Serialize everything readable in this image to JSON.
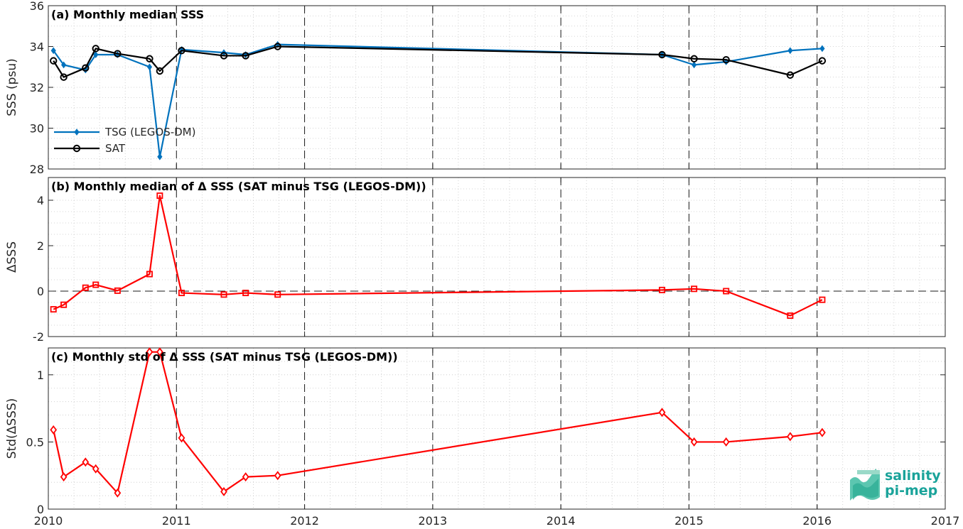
{
  "chart_data": [
    {
      "type": "line",
      "title": "(a) Monthly median SSS",
      "ylabel": "SSS (psu)",
      "xlim": [
        2010,
        2017
      ],
      "ylim": [
        28,
        36
      ],
      "yticks": [
        28,
        30,
        32,
        34,
        36
      ],
      "grid": true,
      "legend_location": "lower-left",
      "series": [
        {
          "name": "TSG (LEGOS-DM)",
          "color": "#0072BD",
          "marker": "diamond",
          "x": [
            2010.04,
            2010.12,
            2010.29,
            2010.37,
            2010.54,
            2010.79,
            2010.87,
            2011.04,
            2011.37,
            2011.54,
            2011.79,
            2014.79,
            2015.04,
            2015.29,
            2015.79,
            2016.04
          ],
          "y": [
            33.8,
            33.1,
            32.85,
            33.6,
            33.6,
            33.0,
            28.6,
            33.85,
            33.7,
            33.6,
            34.1,
            33.6,
            33.1,
            33.25,
            33.8,
            33.9
          ]
        },
        {
          "name": "SAT",
          "color": "#000000",
          "marker": "circle",
          "x": [
            2010.04,
            2010.12,
            2010.29,
            2010.37,
            2010.54,
            2010.79,
            2010.87,
            2011.04,
            2011.37,
            2011.54,
            2011.79,
            2014.79,
            2015.04,
            2015.29,
            2015.79,
            2016.04
          ],
          "y": [
            33.3,
            32.5,
            32.95,
            33.9,
            33.65,
            33.4,
            32.8,
            33.8,
            33.55,
            33.55,
            34.0,
            33.6,
            33.4,
            33.35,
            32.6,
            33.3
          ]
        }
      ]
    },
    {
      "type": "line",
      "title": "(b) Monthly median of Δ SSS (SAT minus TSG (LEGOS-DM))",
      "ylabel": "ΔSSS",
      "xlim": [
        2010,
        2017
      ],
      "ylim": [
        -2,
        5
      ],
      "yticks": [
        -2,
        0,
        2,
        4
      ],
      "grid": true,
      "zero_line": true,
      "series": [
        {
          "color": "#FF0000",
          "marker": "square",
          "x": [
            2010.04,
            2010.12,
            2010.29,
            2010.37,
            2010.54,
            2010.79,
            2010.87,
            2011.04,
            2011.37,
            2011.54,
            2011.79,
            2014.79,
            2015.04,
            2015.29,
            2015.79,
            2016.04
          ],
          "y": [
            -0.8,
            -0.6,
            0.15,
            0.28,
            0.02,
            0.75,
            4.2,
            -0.08,
            -0.15,
            -0.08,
            -0.15,
            0.05,
            0.1,
            0.0,
            -1.08,
            -0.38
          ]
        }
      ]
    },
    {
      "type": "line",
      "title": "(c) Monthly std of Δ SSS (SAT minus TSG (LEGOS-DM))",
      "ylabel": "Std(ΔSSS)",
      "xlim": [
        2010,
        2017
      ],
      "ylim": [
        0,
        1.2
      ],
      "yticks": [
        0,
        0.5,
        1
      ],
      "xticks": [
        2010,
        2011,
        2012,
        2013,
        2014,
        2015,
        2016,
        2017
      ],
      "grid": true,
      "series": [
        {
          "color": "#FF0000",
          "marker": "diamond",
          "x": [
            2010.04,
            2010.12,
            2010.29,
            2010.37,
            2010.54,
            2010.79,
            2010.87,
            2011.04,
            2011.37,
            2011.54,
            2011.79,
            2014.79,
            2015.04,
            2015.29,
            2015.79,
            2016.04
          ],
          "y": [
            0.59,
            0.24,
            0.35,
            0.3,
            0.12,
            1.17,
            1.17,
            0.53,
            0.13,
            0.24,
            0.25,
            0.72,
            0.5,
            0.5,
            0.54,
            0.57
          ]
        }
      ]
    }
  ],
  "year_markers": [
    2011,
    2012,
    2013,
    2014,
    2015,
    2016
  ],
  "logo": {
    "line1": "salinity",
    "line2": "pi-mep",
    "color": "#1aa39a"
  }
}
